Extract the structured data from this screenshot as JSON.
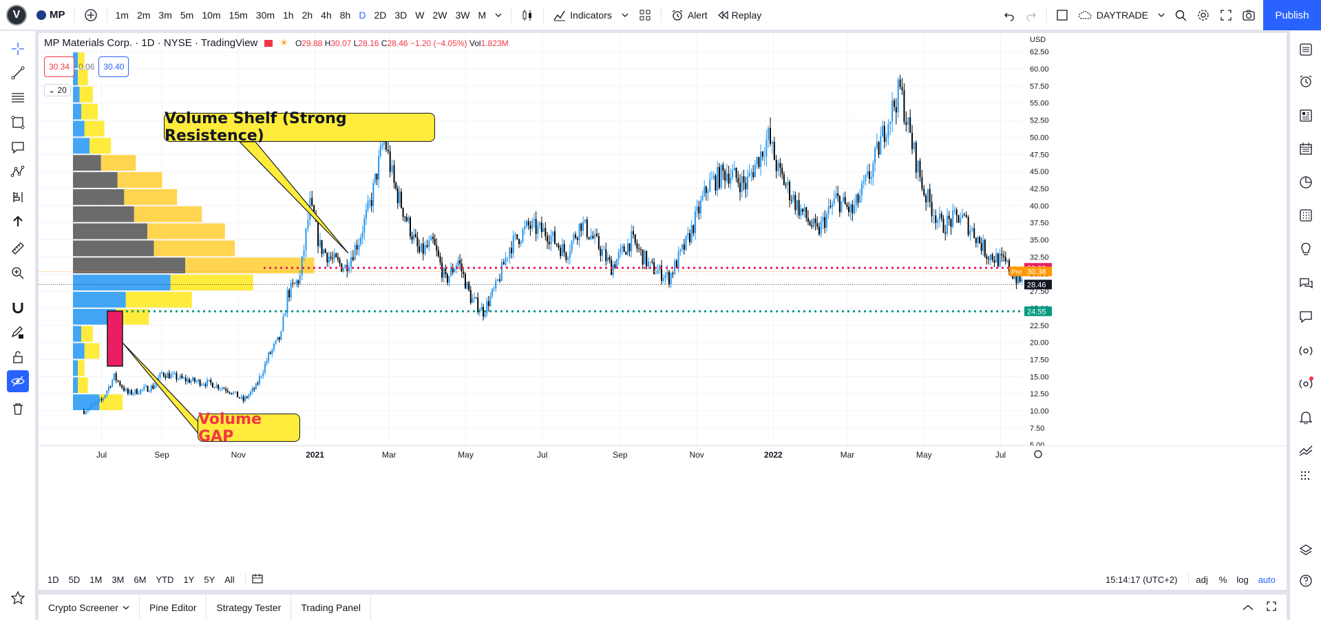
{
  "topbar": {
    "logo": "V",
    "symbol": "MP",
    "timeframes": [
      "1m",
      "2m",
      "3m",
      "5m",
      "10m",
      "15m",
      "30m",
      "1h",
      "2h",
      "4h",
      "8h",
      "D",
      "2D",
      "3D",
      "W",
      "2W",
      "3W",
      "M"
    ],
    "active_timeframe": "D",
    "indicators": "Indicators",
    "alert": "Alert",
    "replay": "Replay",
    "layout_name": "DAYTRADE",
    "publish": "Publish"
  },
  "legend": {
    "title": "MP Materials Corp. · 1D · NYSE · TradingView",
    "o_label": "O",
    "o": "29.88",
    "h_label": "H",
    "h": "30.07",
    "l_label": "L",
    "l": "28.16",
    "c_label": "C",
    "c": "28.46",
    "change": "−1.20 (−4.05%)",
    "vol_label": "Vol",
    "vol": "1.823M"
  },
  "trade": {
    "sell": "30.34",
    "spread": "0.06",
    "buy": "30.40"
  },
  "volume_profile": {
    "length": "20"
  },
  "callouts": {
    "shelf": "Volume Shelf (Strong Resistence)",
    "gap": "Volume GAP"
  },
  "price_axis": {
    "currency": "USD",
    "ticks": [
      "62.50",
      "60.00",
      "57.50",
      "55.00",
      "52.50",
      "50.00",
      "47.50",
      "45.00",
      "42.50",
      "40.00",
      "37.50",
      "35.00",
      "32.50",
      "30.00",
      "27.50",
      "25.00",
      "22.50",
      "20.00",
      "17.50",
      "15.00",
      "12.50",
      "10.00",
      "7.50",
      "5.00"
    ],
    "labels": {
      "resistance": "30.90",
      "pre_label": "Pre",
      "pre": "30.38",
      "last": "28.46",
      "support": "24.55"
    }
  },
  "time_axis": [
    "Jul",
    "Sep",
    "Nov",
    "2021",
    "Mar",
    "May",
    "Jul",
    "Sep",
    "Nov",
    "2022",
    "Mar",
    "May",
    "Jul"
  ],
  "ranges": [
    "1D",
    "5D",
    "1M",
    "3M",
    "6M",
    "YTD",
    "1Y",
    "5Y",
    "All"
  ],
  "status": {
    "clock": "15:14:17 (UTC+2)",
    "adj": "adj",
    "pct": "%",
    "log": "log",
    "auto": "auto"
  },
  "footer": {
    "tabs": [
      "Crypto Screener",
      "Pine Editor",
      "Strategy Tester",
      "Trading Panel"
    ]
  },
  "colors": {
    "up": "#2196f3",
    "down": "#000000",
    "resistance": "#e91e63",
    "support": "#089981",
    "accent": "#2962ff",
    "vp_up": "#42a5f5",
    "vp_down": "#ffeb3b",
    "vp_va_up": "#6b6b6b",
    "vp_va_down": "#ffd54f"
  },
  "chart_data": {
    "type": "candlestick",
    "series": "MP Materials Corp. 1D",
    "price_range": [
      5,
      63
    ],
    "close_path": [
      [
        "2020-07-01",
        10.0
      ],
      [
        "2020-07-15",
        11.5
      ],
      [
        "2020-07-25",
        15.0
      ],
      [
        "2020-08-05",
        12.5
      ],
      [
        "2020-08-25",
        13.5
      ],
      [
        "2020-09-01",
        15.5
      ],
      [
        "2020-09-20",
        14.5
      ],
      [
        "2020-10-10",
        14.0
      ],
      [
        "2020-10-25",
        13.0
      ],
      [
        "2020-11-05",
        11.5
      ],
      [
        "2020-11-15",
        13.5
      ],
      [
        "2020-11-25",
        18.0
      ],
      [
        "2020-12-05",
        21.0
      ],
      [
        "2020-12-10",
        27.0
      ],
      [
        "2020-12-20",
        29.5
      ],
      [
        "2020-12-28",
        40.0
      ],
      [
        "2021-01-05",
        34.0
      ],
      [
        "2021-01-15",
        32.0
      ],
      [
        "2021-01-25",
        31.0
      ],
      [
        "2021-02-05",
        35.0
      ],
      [
        "2021-02-15",
        41.0
      ],
      [
        "2021-02-25",
        50.0
      ],
      [
        "2021-03-05",
        43.0
      ],
      [
        "2021-03-15",
        38.0
      ],
      [
        "2021-03-25",
        33.0
      ],
      [
        "2021-04-05",
        34.5
      ],
      [
        "2021-04-15",
        29.0
      ],
      [
        "2021-04-25",
        32.0
      ],
      [
        "2021-05-05",
        26.5
      ],
      [
        "2021-05-15",
        24.5
      ],
      [
        "2021-05-25",
        28.0
      ],
      [
        "2021-06-05",
        34.0
      ],
      [
        "2021-06-20",
        37.0
      ],
      [
        "2021-07-05",
        36.0
      ],
      [
        "2021-07-20",
        33.0
      ],
      [
        "2021-08-01",
        37.5
      ],
      [
        "2021-08-15",
        34.0
      ],
      [
        "2021-08-25",
        31.0
      ],
      [
        "2021-09-10",
        35.0
      ],
      [
        "2021-09-25",
        31.0
      ],
      [
        "2021-10-10",
        29.5
      ],
      [
        "2021-10-25",
        35.0
      ],
      [
        "2021-11-10",
        43.0
      ],
      [
        "2021-11-25",
        45.0
      ],
      [
        "2021-12-10",
        43.0
      ],
      [
        "2021-12-28",
        50.0
      ],
      [
        "2022-01-05",
        45.0
      ],
      [
        "2022-01-20",
        40.0
      ],
      [
        "2022-02-05",
        36.0
      ],
      [
        "2022-02-20",
        41.0
      ],
      [
        "2022-03-05",
        39.0
      ],
      [
        "2022-03-20",
        45.0
      ],
      [
        "2022-04-01",
        52.0
      ],
      [
        "2022-04-12",
        57.0
      ],
      [
        "2022-04-20",
        50.0
      ],
      [
        "2022-05-01",
        42.0
      ],
      [
        "2022-05-15",
        37.0
      ],
      [
        "2022-05-30",
        38.5
      ],
      [
        "2022-06-10",
        36.0
      ],
      [
        "2022-06-20",
        33.0
      ],
      [
        "2022-07-05",
        31.5
      ],
      [
        "2022-07-15",
        29.0
      ],
      [
        "2022-07-25",
        28.5
      ]
    ],
    "horizontal_levels": [
      {
        "price": 30.9,
        "style": "dotted",
        "role": "resistance"
      },
      {
        "price": 24.55,
        "style": "dotted",
        "role": "support"
      },
      {
        "price": 28.46,
        "style": "dotted",
        "role": "last"
      }
    ],
    "volume_profile_rows": [
      {
        "price_from": 60,
        "price_to": 62.5,
        "up": 3,
        "down": 4
      },
      {
        "price_from": 57.5,
        "price_to": 60,
        "up": 3,
        "down": 6
      },
      {
        "price_from": 55,
        "price_to": 57.5,
        "up": 4,
        "down": 8
      },
      {
        "price_from": 52.5,
        "price_to": 55,
        "up": 5,
        "down": 10
      },
      {
        "price_from": 50,
        "price_to": 52.5,
        "up": 7,
        "down": 12
      },
      {
        "price_from": 47.5,
        "price_to": 50,
        "up": 10,
        "down": 13
      },
      {
        "price_from": 45,
        "price_to": 47.5,
        "up": 17,
        "down": 21
      },
      {
        "price_from": 42.5,
        "price_to": 45,
        "up": 27,
        "down": 27
      },
      {
        "price_from": 40,
        "price_to": 42.5,
        "up": 31,
        "down": 32
      },
      {
        "price_from": 37.5,
        "price_to": 40,
        "up": 37,
        "down": 41
      },
      {
        "price_from": 35,
        "price_to": 37.5,
        "up": 45,
        "down": 47
      },
      {
        "price_from": 32.5,
        "price_to": 35,
        "up": 49,
        "down": 49
      },
      {
        "price_from": 30,
        "price_to": 32.5,
        "up": 68,
        "down": 78
      },
      {
        "price_from": 27.5,
        "price_to": 30,
        "up": 59,
        "down": 50
      },
      {
        "price_from": 25,
        "price_to": 27.5,
        "up": 32,
        "down": 40
      },
      {
        "price_from": 22.5,
        "price_to": 25,
        "up": 26,
        "down": 20
      },
      {
        "price_from": 20,
        "price_to": 22.5,
        "up": 5,
        "down": 7
      },
      {
        "price_from": 17.5,
        "price_to": 20,
        "up": 7,
        "down": 9
      },
      {
        "price_from": 15,
        "price_to": 17.5,
        "up": 3,
        "down": 4
      },
      {
        "price_from": 12.5,
        "price_to": 15,
        "up": 3,
        "down": 6
      },
      {
        "price_from": 10,
        "price_to": 12.5,
        "up": 16,
        "down": 14
      }
    ]
  }
}
